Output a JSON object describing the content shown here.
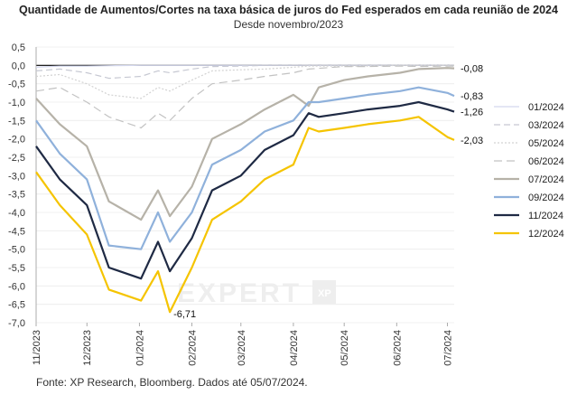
{
  "chart_data": {
    "type": "line",
    "title": "Quantidade de Aumentos/Cortes na taxa básica de juros do Fed esperados em cada reunião de 2024",
    "subtitle": "Desde novembro/2023",
    "source": "Fonte: XP Research, Bloomberg. Dados até 05/07/2024.",
    "watermark": "EXPERT XP",
    "ylim": [
      -7.0,
      0.5
    ],
    "yticks": [
      "0,5",
      "0,0",
      "-0,5",
      "-1,0",
      "-1,5",
      "-2,0",
      "-2,5",
      "-3,0",
      "-3,5",
      "-4,0",
      "-4,5",
      "-5,0",
      "-5,5",
      "-6,0",
      "-6,5",
      "-7,0"
    ],
    "ytick_values": [
      0.5,
      0,
      -0.5,
      -1,
      -1.5,
      -2,
      -2.5,
      -3,
      -3.5,
      -4,
      -4.5,
      -5,
      -5.5,
      -6,
      -6.5,
      -7
    ],
    "xticks": [
      "11/2023",
      "12/2023",
      "01/2024",
      "02/2024",
      "03/2024",
      "04/2024",
      "05/2024",
      "06/2024",
      "07/2024"
    ],
    "x_dates": [
      "2023-11-01",
      "2023-11-15",
      "2023-12-01",
      "2023-12-14",
      "2024-01-02",
      "2024-01-12",
      "2024-01-19",
      "2024-02-01",
      "2024-02-13",
      "2024-03-01",
      "2024-03-15",
      "2024-04-01",
      "2024-04-10",
      "2024-04-16",
      "2024-05-01",
      "2024-05-15",
      "2024-06-03",
      "2024-06-14",
      "2024-07-01",
      "2024-07-05"
    ],
    "series": [
      {
        "name": "01/2024",
        "color": "#d4d8ee",
        "dash": "",
        "width": 1.2,
        "values": [
          -0.05,
          -0.02,
          -0.02,
          -0.01,
          0.0,
          0.0,
          0.0,
          0.0,
          0.0,
          0.0,
          0.0,
          0.0,
          0.0,
          0.0,
          0.0,
          0.0,
          0.0,
          0.0,
          0.0,
          0.0
        ]
      },
      {
        "name": "03/2024",
        "color": "#c6c8d2",
        "dash": "7,4",
        "width": 1.2,
        "values": [
          -0.15,
          -0.1,
          -0.2,
          -0.35,
          -0.3,
          -0.15,
          -0.2,
          -0.1,
          -0.03,
          -0.02,
          0.0,
          0.0,
          0.0,
          0.0,
          0.0,
          0.0,
          0.0,
          0.0,
          0.0,
          0.0
        ]
      },
      {
        "name": "05/2024",
        "color": "#d2d2d2",
        "dash": "2,2",
        "width": 1.2,
        "values": [
          -0.3,
          -0.25,
          -0.5,
          -0.8,
          -0.9,
          -0.6,
          -0.7,
          -0.4,
          -0.15,
          -0.12,
          -0.1,
          -0.05,
          -0.02,
          -0.02,
          -0.02,
          -0.02,
          0.0,
          0.0,
          0.0,
          0.0
        ]
      },
      {
        "name": "06/2024",
        "color": "#c2c2c2",
        "dash": "9,5",
        "width": 1.2,
        "values": [
          -0.7,
          -0.6,
          -1.0,
          -1.4,
          -1.7,
          -1.3,
          -1.5,
          -0.9,
          -0.5,
          -0.4,
          -0.3,
          -0.2,
          -0.1,
          -0.08,
          -0.03,
          -0.03,
          -0.02,
          -0.03,
          -0.02,
          -0.02
        ]
      },
      {
        "name": "07/2024",
        "color": "#b6b2a8",
        "dash": "",
        "width": 2.2,
        "values": [
          -0.9,
          -1.6,
          -2.2,
          -3.7,
          -4.2,
          -3.4,
          -4.1,
          -3.3,
          -2.0,
          -1.6,
          -1.2,
          -0.8,
          -1.1,
          -0.6,
          -0.4,
          -0.3,
          -0.2,
          -0.1,
          -0.07,
          -0.08
        ]
      },
      {
        "name": "09/2024",
        "color": "#8fb1db",
        "dash": "",
        "width": 2.2,
        "values": [
          -1.5,
          -2.4,
          -3.1,
          -4.9,
          -5.0,
          -4.0,
          -4.8,
          -4.0,
          -2.7,
          -2.3,
          -1.8,
          -1.5,
          -1.0,
          -1.0,
          -0.9,
          -0.8,
          -0.7,
          -0.6,
          -0.75,
          -0.83
        ]
      },
      {
        "name": "11/2024",
        "color": "#1f2a44",
        "dash": "",
        "width": 2.2,
        "values": [
          -2.2,
          -3.1,
          -3.8,
          -5.5,
          -5.8,
          -4.8,
          -5.6,
          -4.7,
          -3.4,
          -3.0,
          -2.3,
          -1.9,
          -1.3,
          -1.4,
          -1.3,
          -1.2,
          -1.1,
          -1.0,
          -1.2,
          -1.26
        ]
      },
      {
        "name": "12/2024",
        "color": "#f5c400",
        "dash": "",
        "width": 2.2,
        "values": [
          -2.9,
          -3.8,
          -4.6,
          -6.1,
          -6.4,
          -5.6,
          -6.71,
          -5.5,
          -4.2,
          -3.7,
          -3.1,
          -2.7,
          -1.7,
          -1.8,
          -1.7,
          -1.6,
          -1.5,
          -1.4,
          -1.95,
          -2.03
        ]
      }
    ],
    "end_labels": [
      "-0,08",
      "-0,83",
      "-1,26",
      "-2,03"
    ],
    "annotation": "-6,71",
    "legend_position": "right"
  }
}
